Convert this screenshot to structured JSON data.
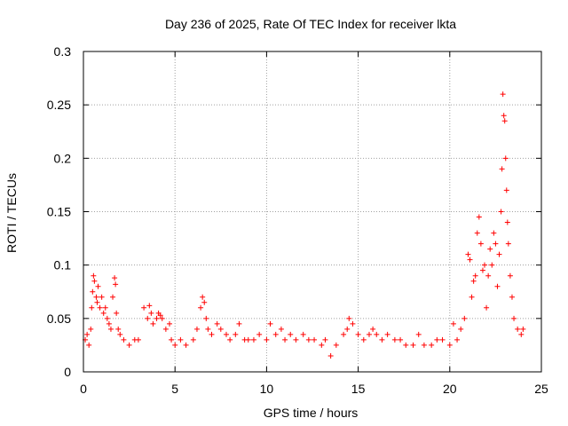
{
  "chart_data": {
    "type": "scatter",
    "title": "Day 236 of 2025, Rate Of TEC Index for receiver lkta",
    "xlabel": "GPS time / hours",
    "ylabel": "ROTI / TECUs",
    "xlim": [
      0,
      25
    ],
    "ylim": [
      0,
      0.3
    ],
    "x_ticks": [
      0,
      5,
      10,
      15,
      20,
      25
    ],
    "x_tick_labels": [
      "0",
      "5",
      "10",
      "15",
      "20",
      "25"
    ],
    "y_ticks": [
      0,
      0.05,
      0.1,
      0.15,
      0.2,
      0.25,
      0.3
    ],
    "y_tick_labels": [
      "0",
      "0.05",
      "0.1",
      "0.15",
      "0.2",
      "0.25",
      "0.3"
    ],
    "grid": true,
    "marker": "+",
    "color": "#ff0000",
    "series": [
      {
        "name": "ROTI",
        "points": [
          [
            0.1,
            0.03
          ],
          [
            0.2,
            0.035
          ],
          [
            0.3,
            0.025
          ],
          [
            0.4,
            0.04
          ],
          [
            0.45,
            0.06
          ],
          [
            0.5,
            0.075
          ],
          [
            0.55,
            0.09
          ],
          [
            0.6,
            0.085
          ],
          [
            0.7,
            0.07
          ],
          [
            0.75,
            0.065
          ],
          [
            0.8,
            0.08
          ],
          [
            0.9,
            0.06
          ],
          [
            1.0,
            0.07
          ],
          [
            1.1,
            0.055
          ],
          [
            1.2,
            0.06
          ],
          [
            1.3,
            0.05
          ],
          [
            1.4,
            0.045
          ],
          [
            1.5,
            0.04
          ],
          [
            1.6,
            0.07
          ],
          [
            1.7,
            0.088
          ],
          [
            1.75,
            0.082
          ],
          [
            1.8,
            0.055
          ],
          [
            1.9,
            0.04
          ],
          [
            2.0,
            0.035
          ],
          [
            2.2,
            0.03
          ],
          [
            2.5,
            0.025
          ],
          [
            2.8,
            0.03
          ],
          [
            3.0,
            0.03
          ],
          [
            3.3,
            0.06
          ],
          [
            3.5,
            0.05
          ],
          [
            3.6,
            0.062
          ],
          [
            3.7,
            0.055
          ],
          [
            3.8,
            0.045
          ],
          [
            4.0,
            0.05
          ],
          [
            4.1,
            0.055
          ],
          [
            4.2,
            0.053
          ],
          [
            4.3,
            0.05
          ],
          [
            4.5,
            0.04
          ],
          [
            4.7,
            0.045
          ],
          [
            4.8,
            0.03
          ],
          [
            5.0,
            0.025
          ],
          [
            5.3,
            0.03
          ],
          [
            5.6,
            0.025
          ],
          [
            6.0,
            0.03
          ],
          [
            6.2,
            0.04
          ],
          [
            6.4,
            0.06
          ],
          [
            6.5,
            0.07
          ],
          [
            6.6,
            0.065
          ],
          [
            6.7,
            0.05
          ],
          [
            6.8,
            0.04
          ],
          [
            7.0,
            0.035
          ],
          [
            7.3,
            0.045
          ],
          [
            7.5,
            0.04
          ],
          [
            7.8,
            0.035
          ],
          [
            8.0,
            0.03
          ],
          [
            8.3,
            0.035
          ],
          [
            8.5,
            0.045
          ],
          [
            8.8,
            0.03
          ],
          [
            9.0,
            0.03
          ],
          [
            9.3,
            0.03
          ],
          [
            9.6,
            0.035
          ],
          [
            10.0,
            0.03
          ],
          [
            10.2,
            0.045
          ],
          [
            10.5,
            0.035
          ],
          [
            10.8,
            0.04
          ],
          [
            11.0,
            0.03
          ],
          [
            11.3,
            0.035
          ],
          [
            11.6,
            0.03
          ],
          [
            12.0,
            0.035
          ],
          [
            12.3,
            0.03
          ],
          [
            12.6,
            0.03
          ],
          [
            13.0,
            0.025
          ],
          [
            13.2,
            0.03
          ],
          [
            13.5,
            0.015
          ],
          [
            13.8,
            0.025
          ],
          [
            14.2,
            0.035
          ],
          [
            14.4,
            0.04
          ],
          [
            14.5,
            0.05
          ],
          [
            14.7,
            0.045
          ],
          [
            15.0,
            0.035
          ],
          [
            15.3,
            0.03
          ],
          [
            15.6,
            0.035
          ],
          [
            15.8,
            0.04
          ],
          [
            16.0,
            0.035
          ],
          [
            16.3,
            0.03
          ],
          [
            16.6,
            0.035
          ],
          [
            17.0,
            0.03
          ],
          [
            17.3,
            0.03
          ],
          [
            17.6,
            0.025
          ],
          [
            18.0,
            0.025
          ],
          [
            18.3,
            0.035
          ],
          [
            18.6,
            0.025
          ],
          [
            19.0,
            0.025
          ],
          [
            19.3,
            0.03
          ],
          [
            19.6,
            0.03
          ],
          [
            20.0,
            0.025
          ],
          [
            20.2,
            0.045
          ],
          [
            20.4,
            0.03
          ],
          [
            20.6,
            0.04
          ],
          [
            20.8,
            0.05
          ],
          [
            21.0,
            0.11
          ],
          [
            21.1,
            0.105
          ],
          [
            21.2,
            0.07
          ],
          [
            21.3,
            0.085
          ],
          [
            21.4,
            0.09
          ],
          [
            21.5,
            0.13
          ],
          [
            21.6,
            0.145
          ],
          [
            21.7,
            0.12
          ],
          [
            21.8,
            0.095
          ],
          [
            21.9,
            0.1
          ],
          [
            22.0,
            0.06
          ],
          [
            22.1,
            0.09
          ],
          [
            22.2,
            0.115
          ],
          [
            22.3,
            0.1
          ],
          [
            22.4,
            0.13
          ],
          [
            22.5,
            0.12
          ],
          [
            22.6,
            0.08
          ],
          [
            22.7,
            0.11
          ],
          [
            22.8,
            0.15
          ],
          [
            22.85,
            0.19
          ],
          [
            22.9,
            0.26
          ],
          [
            22.95,
            0.24
          ],
          [
            23.0,
            0.235
          ],
          [
            23.05,
            0.2
          ],
          [
            23.1,
            0.17
          ],
          [
            23.15,
            0.14
          ],
          [
            23.2,
            0.12
          ],
          [
            23.3,
            0.09
          ],
          [
            23.4,
            0.07
          ],
          [
            23.5,
            0.05
          ],
          [
            23.7,
            0.04
          ],
          [
            23.9,
            0.035
          ],
          [
            24.0,
            0.04
          ]
        ]
      }
    ]
  }
}
